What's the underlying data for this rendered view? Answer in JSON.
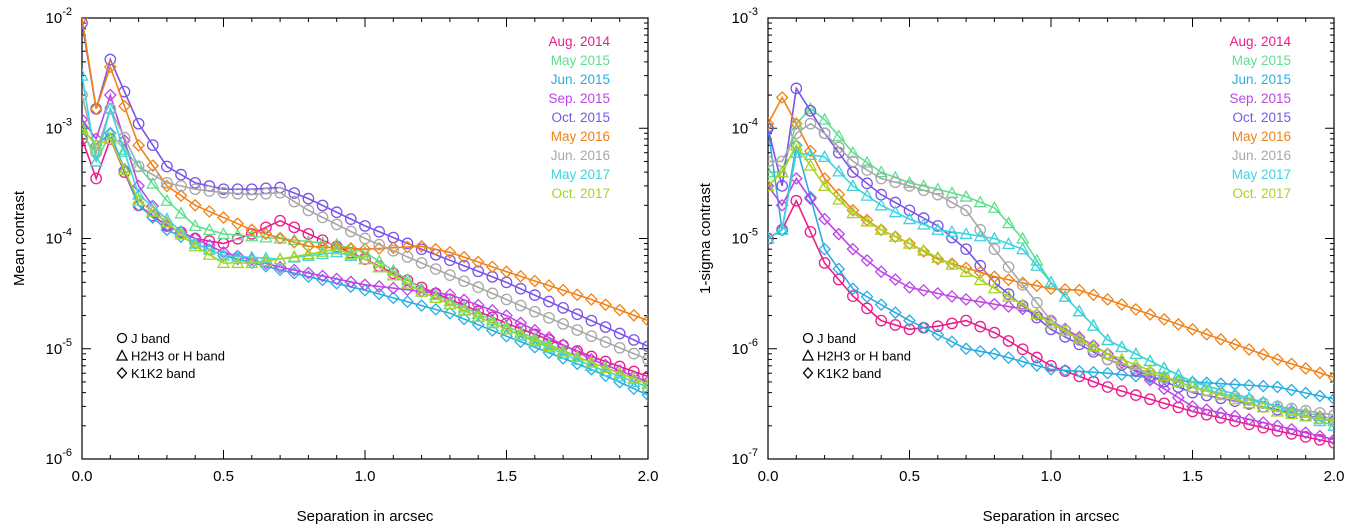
{
  "colors": {
    "Aug. 2014": "#ec1c8c",
    "May 2015": "#5ee08e",
    "Jun. 2015": "#29aee3",
    "Sep. 2015": "#bd45e6",
    "Oct. 2015": "#7a55ea",
    "May 2016": "#f08218",
    "Jun. 2016": "#a8a8a8",
    "May 2017": "#3fd3df",
    "Oct. 2017": "#a6d424"
  },
  "chart_data": [
    {
      "type": "line",
      "ylabel": "Mean contrast",
      "xlabel": "Separation in arcsec",
      "ylog": true,
      "xlim": [
        0,
        2
      ],
      "ylim_exp": [
        -6,
        -2
      ],
      "x_ticks": [
        "0.0",
        "0.5",
        "1.0",
        "1.5",
        "2.0"
      ],
      "y_ticks_exp": [
        "-6",
        "-5",
        "-4",
        "-3",
        "-2"
      ],
      "legend_position": "top-right",
      "legend": [
        "Aug. 2014",
        "May 2015",
        "Jun. 2015",
        "Sep. 2015",
        "Oct. 2015",
        "May 2016",
        "Jun. 2016",
        "May 2017",
        "Oct. 2017"
      ],
      "symbol_legend": [
        "J band",
        "H2H3 or H band",
        "K1K2 band"
      ],
      "series": [
        {
          "name": "Aug. 2014",
          "band": "J",
          "x": [
            0.0,
            0.05,
            0.1,
            0.2,
            0.3,
            0.4,
            0.5,
            0.6,
            0.7,
            0.8,
            1.0,
            1.2,
            1.5,
            1.8,
            2.0
          ],
          "y": [
            0.0008,
            0.00035,
            0.0008,
            0.0002,
            0.00013,
            0.0001,
            9e-05,
            0.00011,
            0.000145,
            0.00011,
            6.5e-05,
            3.6e-05,
            1.7e-05,
            8.5e-06,
            5.6e-06
          ]
        },
        {
          "name": "May 2015",
          "band": "H",
          "x": [
            0.0,
            0.05,
            0.1,
            0.2,
            0.3,
            0.4,
            0.5,
            0.7,
            0.9,
            1.0,
            1.2,
            1.5,
            1.8,
            2.0
          ],
          "y": [
            0.001,
            0.0005,
            0.0009,
            0.00045,
            0.00022,
            0.00013,
            0.00011,
            0.0001,
            8.8e-05,
            7.5e-05,
            3.5e-05,
            1.6e-05,
            7.5e-06,
            4.8e-06
          ]
        },
        {
          "name": "Jun. 2015",
          "band": "K1K2",
          "x": [
            0.0,
            0.05,
            0.1,
            0.2,
            0.3,
            0.4,
            0.5,
            0.7,
            1.0,
            1.3,
            1.5,
            1.8,
            2.0
          ],
          "y": [
            0.001,
            0.0007,
            0.0009,
            0.0002,
            0.00012,
            9e-05,
            7e-05,
            5.2e-05,
            3.4e-05,
            2.1e-05,
            1.3e-05,
            6.5e-06,
            3.8e-06
          ]
        },
        {
          "name": "Sep. 2015",
          "band": "K1K2",
          "x": [
            0.0,
            0.05,
            0.1,
            0.2,
            0.3,
            0.4,
            0.5,
            0.7,
            1.0,
            1.3,
            1.5,
            1.8,
            2.0
          ],
          "y": [
            0.0012,
            0.0008,
            0.002,
            0.0003,
            0.00013,
            0.0001,
            7.5e-05,
            5.5e-05,
            3.8e-05,
            3.1e-05,
            2e-05,
            8e-06,
            5e-06
          ]
        },
        {
          "name": "Oct. 2015",
          "band": "J",
          "x": [
            0.0,
            0.05,
            0.1,
            0.2,
            0.3,
            0.4,
            0.5,
            0.6,
            0.7,
            0.8,
            1.0,
            1.2,
            1.5,
            1.8,
            2.0
          ],
          "y": [
            0.009,
            0.0015,
            0.0042,
            0.0011,
            0.00045,
            0.00032,
            0.00028,
            0.00028,
            0.00029,
            0.00023,
            0.00013,
            8e-05,
            4e-05,
            1.8e-05,
            1.05e-05
          ]
        },
        {
          "name": "May 2016",
          "band": "K1K2",
          "x": [
            0.0,
            0.05,
            0.1,
            0.2,
            0.3,
            0.4,
            0.6,
            0.8,
            1.0,
            1.2,
            1.3,
            1.5,
            1.8,
            2.0
          ],
          "y": [
            0.01,
            0.0015,
            0.0036,
            0.0007,
            0.0003,
            0.0002,
            0.00012,
            8.5e-05,
            8e-05,
            8.5e-05,
            7.5e-05,
            5e-05,
            2.8e-05,
            1.8e-05
          ]
        },
        {
          "name": "Jun. 2016",
          "band": "J",
          "x": [
            0.0,
            0.05,
            0.1,
            0.2,
            0.3,
            0.4,
            0.5,
            0.6,
            0.7,
            0.8,
            1.0,
            1.2,
            1.5,
            1.8,
            2.0
          ],
          "y": [
            0.002,
            0.0006,
            0.0015,
            0.00045,
            0.00032,
            0.00028,
            0.00026,
            0.00025,
            0.00026,
            0.00018,
            0.0001,
            6e-05,
            2.8e-05,
            1.3e-05,
            8e-06
          ]
        },
        {
          "name": "May 2017",
          "band": "H",
          "x": [
            0.0,
            0.05,
            0.1,
            0.2,
            0.3,
            0.4,
            0.5,
            0.7,
            0.9,
            1.0,
            1.2,
            1.5,
            1.8,
            2.0
          ],
          "y": [
            0.003,
            0.0005,
            0.0015,
            0.00025,
            0.00015,
            9e-05,
            7e-05,
            6.5e-05,
            7.5e-05,
            6.5e-05,
            3.3e-05,
            1.5e-05,
            7e-06,
            4.5e-06
          ]
        },
        {
          "name": "Oct. 2017",
          "band": "H",
          "x": [
            0.0,
            0.05,
            0.1,
            0.2,
            0.3,
            0.4,
            0.5,
            0.6,
            0.7,
            0.9,
            1.0,
            1.2,
            1.5,
            1.8,
            2.0
          ],
          "y": [
            0.001,
            0.0007,
            0.0008,
            0.00022,
            0.00014,
            8.5e-05,
            6e-05,
            6e-05,
            6.5e-05,
            8e-05,
            6.5e-05,
            3.3e-05,
            1.5e-05,
            7.5e-06,
            4.8e-06
          ]
        }
      ]
    },
    {
      "type": "line",
      "ylabel": "1-sigma contrast",
      "xlabel": "Separation in arcsec",
      "ylog": true,
      "xlim": [
        0,
        2
      ],
      "ylim_exp": [
        -7,
        -3
      ],
      "x_ticks": [
        "0.0",
        "0.5",
        "1.0",
        "1.5",
        "2.0"
      ],
      "y_ticks_exp": [
        "-7",
        "-6",
        "-5",
        "-4",
        "-3"
      ],
      "legend_position": "top-right",
      "legend": [
        "Aug. 2014",
        "May 2015",
        "Jun. 2015",
        "Sep. 2015",
        "Oct. 2015",
        "May 2016",
        "Jun. 2016",
        "May 2017",
        "Oct. 2017"
      ],
      "symbol_legend": [
        "J band",
        "H2H3 or H band",
        "K1K2 band"
      ],
      "series": [
        {
          "name": "Aug. 2014",
          "band": "J",
          "x": [
            0.0,
            0.05,
            0.1,
            0.2,
            0.3,
            0.4,
            0.5,
            0.6,
            0.7,
            0.8,
            1.0,
            1.2,
            1.5,
            1.8,
            2.0
          ],
          "y": [
            1e-05,
            1.2e-05,
            2.2e-05,
            6e-06,
            3e-06,
            1.8e-06,
            1.5e-06,
            1.6e-06,
            1.8e-06,
            1.4e-06,
            7e-07,
            4.5e-07,
            2.7e-07,
            1.8e-07,
            1.4e-07
          ]
        },
        {
          "name": "May 2015",
          "band": "H",
          "x": [
            0.0,
            0.05,
            0.1,
            0.15,
            0.2,
            0.3,
            0.4,
            0.5,
            0.6,
            0.7,
            0.8,
            0.9,
            1.0,
            1.2,
            1.5,
            1.8,
            2.0
          ],
          "y": [
            4e-05,
            4e-05,
            0.00011,
            0.00015,
            0.00012,
            6e-05,
            4e-05,
            3.2e-05,
            2.8e-05,
            2.4e-05,
            1.9e-05,
            1e-05,
            4e-06,
            1.2e-06,
            5e-07,
            3e-07,
            2.3e-07
          ]
        },
        {
          "name": "Jun. 2015",
          "band": "K1K2",
          "x": [
            0.0,
            0.05,
            0.1,
            0.2,
            0.3,
            0.5,
            0.7,
            0.8,
            1.0,
            1.2,
            1.5,
            1.8,
            2.0
          ],
          "y": [
            0.0001,
            1.2e-05,
            7e-05,
            8e-06,
            3.5e-06,
            1.8e-06,
            1e-06,
            9e-07,
            6.5e-07,
            6e-07,
            5e-07,
            4.5e-07,
            3.5e-07
          ]
        },
        {
          "name": "Sep. 2015",
          "band": "K1K2",
          "x": [
            0.0,
            0.05,
            0.1,
            0.2,
            0.3,
            0.4,
            0.5,
            0.7,
            0.9,
            1.0,
            1.2,
            1.5,
            1.8,
            2.0
          ],
          "y": [
            3e-05,
            2e-05,
            3.5e-05,
            1.5e-05,
            8e-06,
            5e-06,
            3.6e-06,
            2.8e-06,
            2.3e-06,
            1.8e-06,
            9e-07,
            3e-07,
            2e-07,
            1.5e-07
          ]
        },
        {
          "name": "Oct. 2015",
          "band": "J",
          "x": [
            0.0,
            0.05,
            0.1,
            0.2,
            0.3,
            0.4,
            0.5,
            0.6,
            0.7,
            0.8,
            1.0,
            1.2,
            1.5,
            1.8,
            2.0
          ],
          "y": [
            0.0001,
            3e-05,
            0.00023,
            9e-05,
            4e-05,
            2.5e-05,
            1.8e-05,
            1.3e-05,
            8e-06,
            4e-06,
            1.5e-06,
            8e-07,
            4e-07,
            2.8e-07,
            2.2e-07
          ]
        },
        {
          "name": "May 2016",
          "band": "K1K2",
          "x": [
            0.0,
            0.05,
            0.1,
            0.2,
            0.3,
            0.4,
            0.5,
            0.6,
            0.8,
            1.0,
            1.1,
            1.2,
            1.5,
            1.8,
            2.0
          ],
          "y": [
            0.00011,
            0.00019,
            0.00011,
            3.5e-05,
            1.8e-05,
            1.2e-05,
            9e-06,
            6.5e-06,
            4.5e-06,
            3.5e-06,
            3.4e-06,
            2.8e-06,
            1.5e-06,
            8e-07,
            5.5e-07
          ]
        },
        {
          "name": "Jun. 2016",
          "band": "J",
          "x": [
            0.0,
            0.05,
            0.1,
            0.15,
            0.2,
            0.3,
            0.4,
            0.5,
            0.6,
            0.7,
            0.8,
            1.0,
            1.2,
            1.5,
            1.8,
            2.0
          ],
          "y": [
            5e-05,
            5e-05,
            9e-05,
            0.00011,
            9e-05,
            5e-05,
            3.5e-05,
            3e-05,
            2.5e-05,
            1.8e-05,
            8e-06,
            1.8e-06,
            8e-07,
            4.5e-07,
            3e-07,
            2.5e-07
          ]
        },
        {
          "name": "May 2017",
          "band": "H",
          "x": [
            0.0,
            0.05,
            0.1,
            0.2,
            0.3,
            0.4,
            0.5,
            0.6,
            0.7,
            0.8,
            0.9,
            1.0,
            1.2,
            1.5,
            1.8,
            2.0
          ],
          "y": [
            1e-05,
            1.2e-05,
            6e-05,
            5.5e-05,
            3e-05,
            2e-05,
            1.5e-05,
            1.2e-05,
            1.1e-05,
            1e-05,
            8e-06,
            4e-06,
            1.2e-06,
            5e-07,
            3e-07,
            2e-07
          ]
        },
        {
          "name": "Oct. 2017",
          "band": "H",
          "x": [
            0.0,
            0.05,
            0.1,
            0.2,
            0.3,
            0.4,
            0.5,
            0.7,
            0.9,
            1.0,
            1.2,
            1.5,
            1.8,
            2.0
          ],
          "y": [
            3e-05,
            4e-05,
            7e-05,
            3e-05,
            1.7e-05,
            1.2e-05,
            9e-06,
            5e-06,
            2.5e-06,
            1.7e-06,
            9e-07,
            4.5e-07,
            2.7e-07,
            2.2e-07
          ]
        }
      ]
    }
  ]
}
